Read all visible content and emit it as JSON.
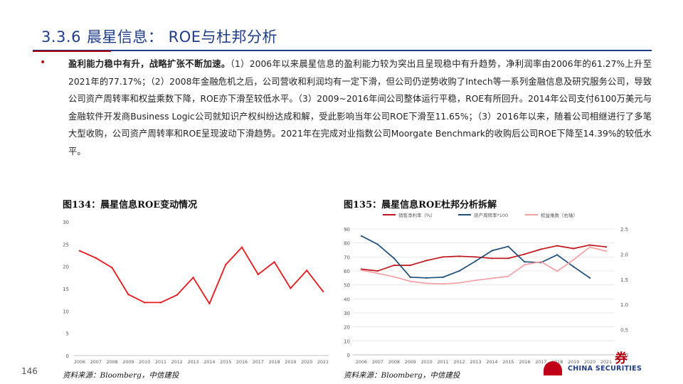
{
  "page": {
    "section_number": "3.3.6",
    "section_title": "晨星信息： ROE与杜邦分析",
    "page_number": "146",
    "bullet_glyph": "•",
    "paragraph_lead": "盈利能力稳中有升，战略扩张不断加速。",
    "paragraph_body": "（1）2006年以来晨星信息的盈利能力较为突出且呈现稳中有升趋势，净利润率由2006年的61.27%上升至2021年的77.17%；（2）2008年金融危机之后，公司营收和利润均有一定下滑，但公司仍逆势收购了Intech等一系列金融信息及研究服务公司，导致公司资产周转率和权益乘数下降，ROE亦下滑至较低水平。（3）2009~2016年间公司整体运行平稳，ROE有所回升。2014年公司支付6100万美元与金融软件开发商Business Logic公司就知识产权纠纷达成和解，受此影响当年公司ROE下滑至11.65%；（3）2016年以来，随着公司相继进行了多笔大型收购，公司资产周转率和ROE呈现波动下滑趋势。2021年在完成对业指数公司Moorgate Benchmark的收购后公司ROE下降至14.39%的较低水平。",
    "logo_cn": "券",
    "logo_en": "CHINA SECURITIES",
    "colors": {
      "title_blue": "#1f3c88",
      "accent_red": "#b00010"
    }
  },
  "figures": [
    {
      "title": "图134：晨星信息ROE变动情况",
      "source": "资料来源：Bloomberg，中信建投"
    },
    {
      "title": "图135：晨星信息ROE杜邦分析拆解",
      "source": "资料来源：Bloomberg，中信建投"
    }
  ],
  "chart_data": [
    {
      "type": "line",
      "title": "",
      "x": [
        "2006",
        "2007",
        "2008",
        "2009",
        "2010",
        "2011",
        "2012",
        "2013",
        "2014",
        "2015",
        "2016",
        "2017",
        "2018",
        "2019",
        "2020",
        "2021"
      ],
      "series": [
        {
          "name": "",
          "color": "#e8181c",
          "values": [
            23.5,
            21.9,
            19.7,
            13.7,
            11.9,
            11.9,
            13.6,
            17.5,
            11.65,
            20.4,
            24.3,
            18.2,
            21.0,
            15.1,
            19.1,
            14.39
          ]
        }
      ],
      "ylim": [
        0,
        30
      ],
      "yticks": [
        "0",
        "5",
        "10",
        "15",
        "20",
        "25",
        "30"
      ],
      "grid": false
    },
    {
      "type": "line",
      "title": "",
      "x": [
        "2006",
        "2007",
        "2008",
        "2009",
        "2010",
        "2011",
        "2012",
        "2013",
        "2014",
        "2015",
        "2016",
        "2017",
        "2018",
        "2019",
        "2020",
        "2021"
      ],
      "legend": {
        "position": "top",
        "entries": [
          "销售净利率（%）",
          "资产周转率*100",
          "权益乘数（右轴）"
        ]
      },
      "series": [
        {
          "name": "销售净利率（%）",
          "axis": "left",
          "color": "#c0161c",
          "values": [
            61.27,
            60,
            64,
            64,
            67.5,
            70,
            70.5,
            70,
            69,
            69,
            72,
            75.5,
            78,
            76,
            78.5,
            77.17
          ]
        },
        {
          "name": "资产周转率*100",
          "axis": "left",
          "color": "#1f4e79",
          "values": [
            85,
            79,
            69,
            55.5,
            55,
            55.5,
            60,
            67,
            74.5,
            77.5,
            66.5,
            66,
            71.5,
            63,
            55,
            null
          ]
        },
        {
          "name": "权益乘数（右轴）",
          "axis": "right",
          "color": "#f4a0a4",
          "values": [
            1.68,
            1.62,
            1.55,
            1.46,
            1.42,
            1.41,
            1.43,
            1.48,
            1.52,
            1.56,
            1.79,
            1.85,
            1.66,
            1.89,
            2.14,
            2.06
          ]
        }
      ],
      "ylim_left": [
        0,
        90
      ],
      "yticks_left": [
        "0",
        "10",
        "20",
        "30",
        "40",
        "50",
        "60",
        "70",
        "80",
        "90"
      ],
      "ylim_right": [
        0,
        2.5
      ],
      "yticks_right": [
        "0.0",
        "0.5",
        "1.0",
        "1.5",
        "2.0",
        "2.5"
      ],
      "grid": true
    }
  ]
}
